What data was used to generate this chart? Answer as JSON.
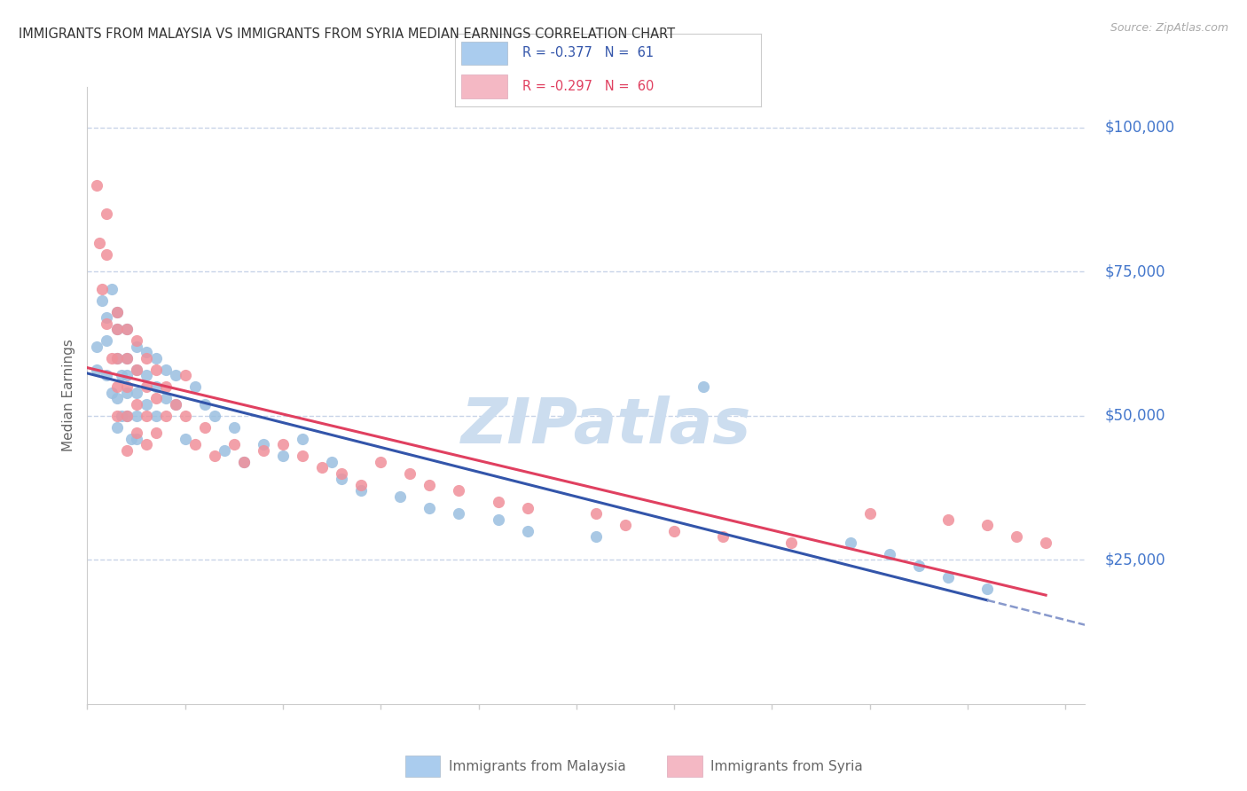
{
  "title": "IMMIGRANTS FROM MALAYSIA VS IMMIGRANTS FROM SYRIA MEDIAN EARNINGS CORRELATION CHART",
  "source": "Source: ZipAtlas.com",
  "ylabel": "Median Earnings",
  "watermark_text": "ZIPatlas",
  "malaysia_scatter_color": "#9abfe0",
  "syria_scatter_color": "#f0909a",
  "malaysia_line_color": "#3355aa",
  "syria_line_color": "#e04060",
  "malaysia_dash_color": "#8899cc",
  "right_label_color": "#4477cc",
  "title_color": "#333333",
  "source_color": "#aaaaaa",
  "grid_color": "#c8d4e8",
  "bottom_label_color": "#666666",
  "watermark_color": "#ccddef",
  "xlim_min": 0.0,
  "xlim_max": 0.102,
  "ylim_min": 0,
  "ylim_max": 107000,
  "yticks": [
    25000,
    50000,
    75000,
    100000
  ],
  "ytick_labels": [
    "$25,000",
    "$50,000",
    "$75,000",
    "$100,000"
  ],
  "malaysia_legend_color": "#aaccee",
  "syria_legend_color": "#f4b8c4",
  "malaysia_x": [
    0.001,
    0.001,
    0.0015,
    0.002,
    0.002,
    0.002,
    0.0025,
    0.0025,
    0.003,
    0.003,
    0.003,
    0.003,
    0.003,
    0.0035,
    0.0035,
    0.004,
    0.004,
    0.004,
    0.004,
    0.004,
    0.0045,
    0.005,
    0.005,
    0.005,
    0.005,
    0.005,
    0.006,
    0.006,
    0.006,
    0.007,
    0.007,
    0.007,
    0.008,
    0.008,
    0.009,
    0.009,
    0.01,
    0.011,
    0.012,
    0.013,
    0.014,
    0.015,
    0.016,
    0.018,
    0.02,
    0.022,
    0.025,
    0.026,
    0.028,
    0.032,
    0.035,
    0.038,
    0.042,
    0.045,
    0.052,
    0.063,
    0.078,
    0.082,
    0.085,
    0.088,
    0.092
  ],
  "malaysia_y": [
    62000,
    58000,
    70000,
    67000,
    63000,
    57000,
    72000,
    54000,
    68000,
    65000,
    60000,
    53000,
    48000,
    57000,
    50000,
    65000,
    60000,
    57000,
    54000,
    50000,
    46000,
    62000,
    58000,
    54000,
    50000,
    46000,
    61000,
    57000,
    52000,
    60000,
    55000,
    50000,
    58000,
    53000,
    57000,
    52000,
    46000,
    55000,
    52000,
    50000,
    44000,
    48000,
    42000,
    45000,
    43000,
    46000,
    42000,
    39000,
    37000,
    36000,
    34000,
    33000,
    32000,
    30000,
    29000,
    55000,
    28000,
    26000,
    24000,
    22000,
    20000
  ],
  "syria_x": [
    0.001,
    0.0012,
    0.0015,
    0.002,
    0.002,
    0.002,
    0.0025,
    0.003,
    0.003,
    0.003,
    0.003,
    0.003,
    0.004,
    0.004,
    0.004,
    0.004,
    0.004,
    0.005,
    0.005,
    0.005,
    0.005,
    0.006,
    0.006,
    0.006,
    0.006,
    0.007,
    0.007,
    0.007,
    0.008,
    0.008,
    0.009,
    0.01,
    0.01,
    0.011,
    0.012,
    0.013,
    0.015,
    0.016,
    0.018,
    0.02,
    0.022,
    0.024,
    0.026,
    0.028,
    0.03,
    0.033,
    0.035,
    0.038,
    0.042,
    0.045,
    0.052,
    0.055,
    0.06,
    0.065,
    0.072,
    0.08,
    0.088,
    0.092,
    0.095,
    0.098
  ],
  "syria_y": [
    90000,
    80000,
    72000,
    85000,
    78000,
    66000,
    60000,
    68000,
    65000,
    60000,
    55000,
    50000,
    65000,
    60000,
    55000,
    50000,
    44000,
    63000,
    58000,
    52000,
    47000,
    60000,
    55000,
    50000,
    45000,
    58000,
    53000,
    47000,
    55000,
    50000,
    52000,
    57000,
    50000,
    45000,
    48000,
    43000,
    45000,
    42000,
    44000,
    45000,
    43000,
    41000,
    40000,
    38000,
    42000,
    40000,
    38000,
    37000,
    35000,
    34000,
    33000,
    31000,
    30000,
    29000,
    28000,
    33000,
    32000,
    31000,
    29000,
    28000
  ]
}
